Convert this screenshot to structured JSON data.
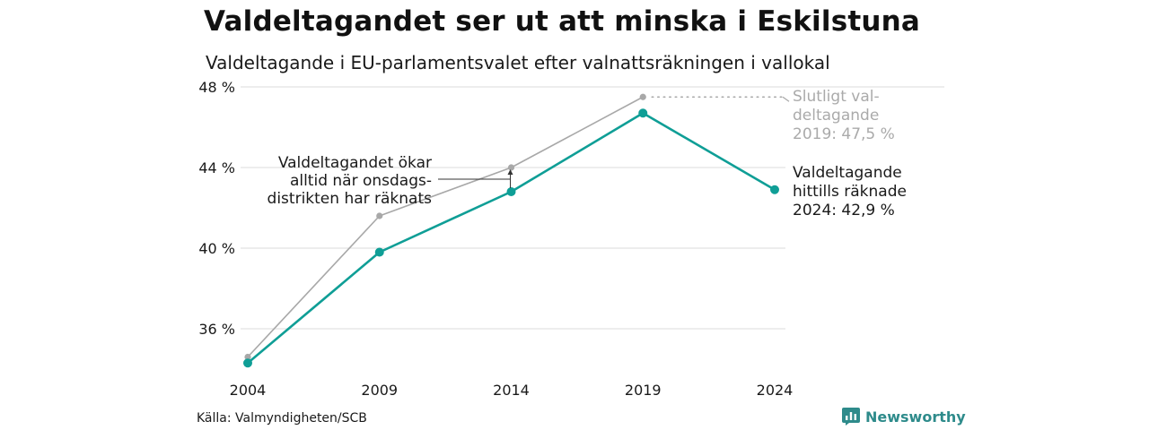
{
  "header": {
    "title": "Valdeltagandet ser ut att minska i Eskilstuna",
    "subtitle": "Valdeltagande i EU-parlamentsvalet efter valnattsräkningen i vallokal"
  },
  "footer": {
    "source": "Källa: Valmyndigheten/SCB",
    "brand": "Newsworthy",
    "brand_icon": "newsworthy-logo-icon"
  },
  "colors": {
    "teal": "#0f9e96",
    "gray": "#a8a8a8",
    "grid": "#e2e2e2",
    "text": "#1a1a1a",
    "brand": "#2e8b8b"
  },
  "chart_data": {
    "type": "line",
    "x": [
      "2004",
      "2009",
      "2014",
      "2019",
      "2024"
    ],
    "series": [
      {
        "values": [
          34.6,
          41.6,
          44.0,
          47.5,
          null
        ],
        "color": "#a8a8a8"
      },
      {
        "values": [
          34.3,
          39.8,
          42.8,
          46.7,
          42.9
        ],
        "color": "#0f9e96"
      }
    ],
    "ylim": [
      33.6,
      48.0
    ],
    "yticks": [
      36,
      40,
      44,
      48
    ],
    "ytick_labels": [
      "36 %",
      "40 %",
      "44 %",
      "48 %"
    ],
    "grid": true,
    "annotations": [
      {
        "lines": [
          "Valdeltagandet ökar",
          "alltid när onsdags-",
          "distrikten har räknats"
        ],
        "target_x": "2014"
      },
      {
        "lines": [
          "Slutligt val-",
          "deltagande",
          "2019: 47,5 %"
        ],
        "series": 0
      },
      {
        "lines": [
          "Valdeltagande",
          "hittills räknade",
          "2024: 42,9 %"
        ],
        "series": 1
      }
    ]
  }
}
